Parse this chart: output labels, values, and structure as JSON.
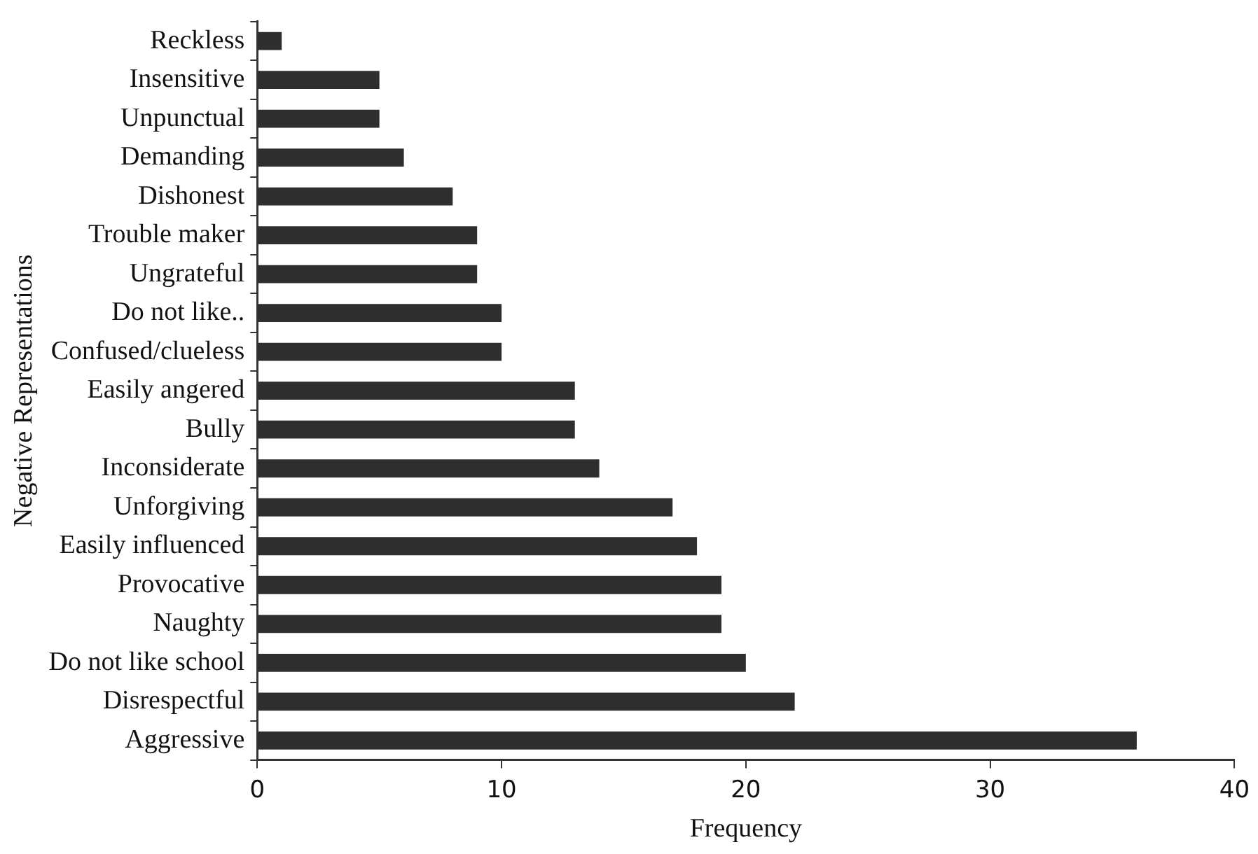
{
  "chart_data": {
    "type": "bar",
    "orientation": "horizontal",
    "xlabel": "Frequency",
    "ylabel": "Negative Representations",
    "categories": [
      "Reckless",
      "Insensitive",
      "Unpunctual",
      "Demanding",
      "Dishonest",
      "Trouble maker",
      "Ungrateful",
      "Do not like..",
      "Confused/clueless",
      "Easily angered",
      "Bully",
      "Inconsiderate",
      "Unforgiving",
      "Easily influenced",
      "Provocative",
      "Naughty",
      "Do not like school",
      "Disrespectful",
      "Aggressive"
    ],
    "values": [
      1,
      5,
      5,
      6,
      8,
      9,
      9,
      10,
      10,
      13,
      13,
      14,
      17,
      18,
      19,
      19,
      20,
      22,
      36
    ],
    "color": "#2e2e2e",
    "xlim": [
      0,
      40
    ],
    "xticks": [
      0,
      10,
      20,
      30,
      40
    ],
    "grid": false,
    "legend": false
  }
}
